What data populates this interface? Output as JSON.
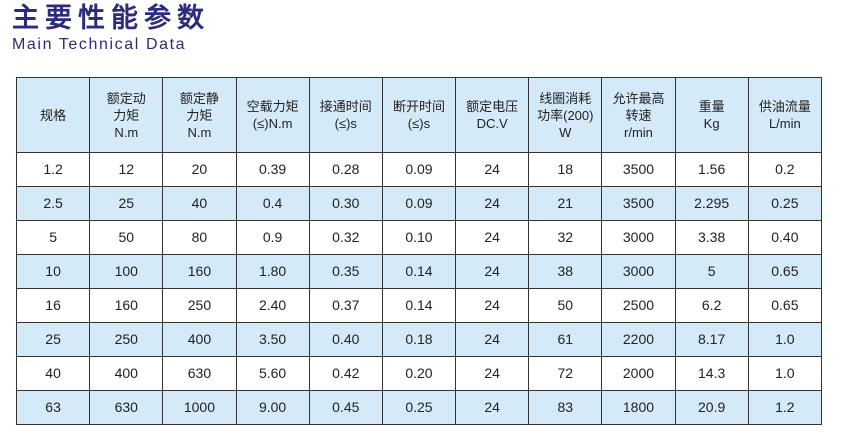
{
  "title": "主要性能参数",
  "subtitle": "Main Technical Data",
  "colors": {
    "header_bg": "#d4eaf8",
    "alt_row_bg": "#d4eaf8",
    "title": "#2b2d7c"
  },
  "table": {
    "headers": [
      [
        "规格"
      ],
      [
        "额定动",
        "力矩",
        "N.m"
      ],
      [
        "额定静",
        "力矩",
        "N.m"
      ],
      [
        "空载力矩",
        "(≤)N.m"
      ],
      [
        "接通时间",
        "(≤)s"
      ],
      [
        "断开时间",
        "(≤)s"
      ],
      [
        "额定电压",
        "DC.V"
      ],
      [
        "线圈消耗",
        "功率(200)",
        "W"
      ],
      [
        "允许最高",
        "转速",
        "r/min"
      ],
      [
        "重量",
        "Kg"
      ],
      [
        "供油流量",
        "L/min"
      ]
    ],
    "rows": [
      [
        "1.2",
        "12",
        "20",
        "0.39",
        "0.28",
        "0.09",
        "24",
        "18",
        "3500",
        "1.56",
        "0.2"
      ],
      [
        "2.5",
        "25",
        "40",
        "0.4",
        "0.30",
        "0.09",
        "24",
        "21",
        "3500",
        "2.295",
        "0.25"
      ],
      [
        "5",
        "50",
        "80",
        "0.9",
        "0.32",
        "0.10",
        "24",
        "32",
        "3000",
        "3.38",
        "0.40"
      ],
      [
        "10",
        "100",
        "160",
        "1.80",
        "0.35",
        "0.14",
        "24",
        "38",
        "3000",
        "5",
        "0.65"
      ],
      [
        "16",
        "160",
        "250",
        "2.40",
        "0.37",
        "0.14",
        "24",
        "50",
        "2500",
        "6.2",
        "0.65"
      ],
      [
        "25",
        "250",
        "400",
        "3.50",
        "0.40",
        "0.18",
        "24",
        "61",
        "2200",
        "8.17",
        "1.0"
      ],
      [
        "40",
        "400",
        "630",
        "5.60",
        "0.42",
        "0.20",
        "24",
        "72",
        "2000",
        "14.3",
        "1.0"
      ],
      [
        "63",
        "630",
        "1000",
        "9.00",
        "0.45",
        "0.25",
        "24",
        "83",
        "1800",
        "20.9",
        "1.2"
      ]
    ]
  }
}
